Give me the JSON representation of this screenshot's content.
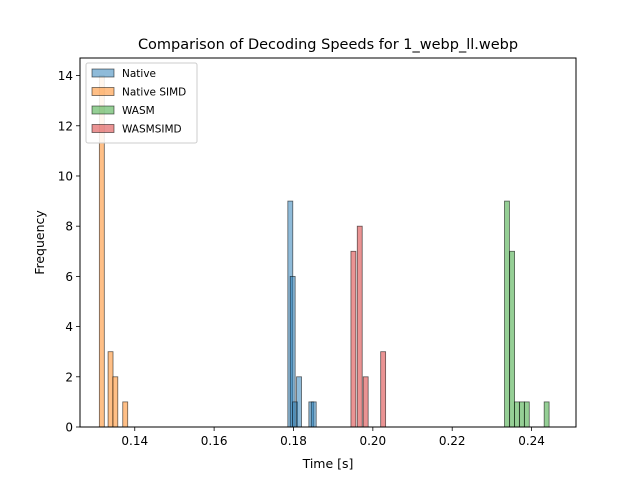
{
  "chart_data": {
    "type": "histogram",
    "title": "Comparison of Decoding Speeds for 1_webp_ll.webp",
    "xlabel": "Time [s]",
    "ylabel": "Frequency",
    "xlim": [
      0.1262,
      0.2512
    ],
    "ylim": [
      0,
      14.7
    ],
    "xticks": [
      0.14,
      0.16,
      0.18,
      0.2,
      0.22,
      0.24
    ],
    "xtick_labels": [
      "0.14",
      "0.16",
      "0.18",
      "0.20",
      "0.22",
      "0.24"
    ],
    "yticks": [
      0,
      2,
      4,
      6,
      8,
      10,
      12,
      14
    ],
    "ytick_labels": [
      "0",
      "2",
      "4",
      "6",
      "8",
      "10",
      "12",
      "14"
    ],
    "grid": false,
    "legend_position": "top-left",
    "bin_width": 0.00125,
    "series": [
      {
        "name": "Native",
        "color": "#1f77b4",
        "bins": [
          {
            "x": 0.1792,
            "count": 9
          },
          {
            "x": 0.1798,
            "count": 6
          },
          {
            "x": 0.1804,
            "count": 1
          },
          {
            "x": 0.1814,
            "count": 2
          },
          {
            "x": 0.1845,
            "count": 1
          },
          {
            "x": 0.1851,
            "count": 1
          }
        ]
      },
      {
        "name": "Native SIMD",
        "color": "#ff7f0e",
        "bins": [
          {
            "x": 0.1317,
            "count": 14
          },
          {
            "x": 0.1339,
            "count": 3
          },
          {
            "x": 0.1351,
            "count": 2
          },
          {
            "x": 0.1376,
            "count": 1
          }
        ]
      },
      {
        "name": "WASM",
        "color": "#2ca02c",
        "bins": [
          {
            "x": 0.2338,
            "count": 9
          },
          {
            "x": 0.2351,
            "count": 7
          },
          {
            "x": 0.2363,
            "count": 1
          },
          {
            "x": 0.2376,
            "count": 1
          },
          {
            "x": 0.2388,
            "count": 1
          },
          {
            "x": 0.2438,
            "count": 1
          }
        ]
      },
      {
        "name": "WASMSIMD",
        "color": "#d62728",
        "bins": [
          {
            "x": 0.1951,
            "count": 7
          },
          {
            "x": 0.1967,
            "count": 8
          },
          {
            "x": 0.1982,
            "count": 2
          },
          {
            "x": 0.2026,
            "count": 3
          }
        ]
      }
    ]
  }
}
